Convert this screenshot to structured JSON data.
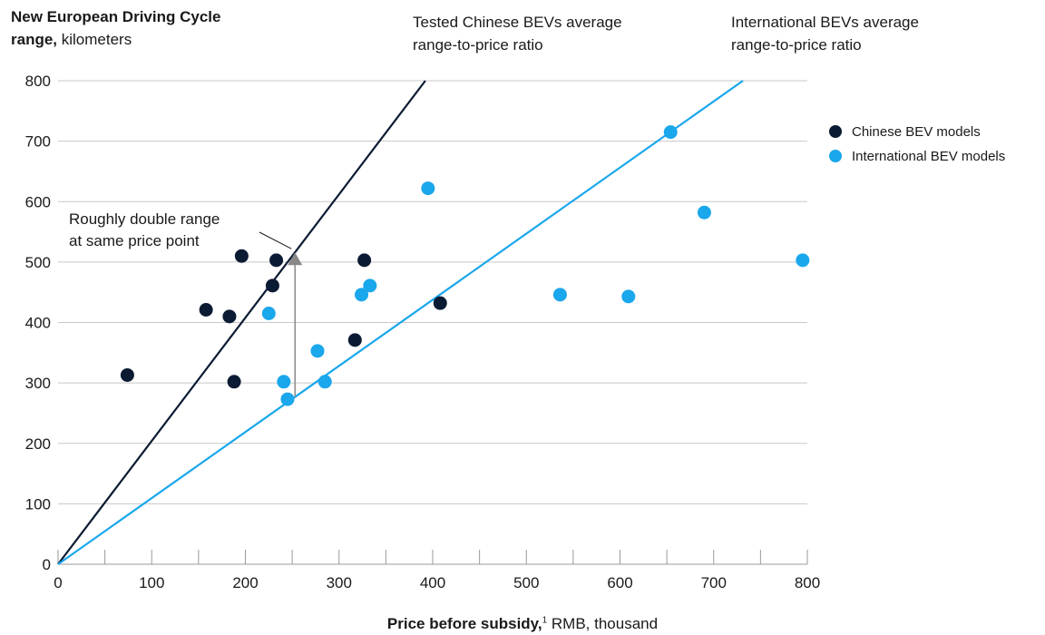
{
  "chart_data": {
    "type": "scatter",
    "ylabel_bold": "New European Driving Cycle range,",
    "ylabel_rest": " kilometers",
    "xlabel_bold": "Price before subsidy,",
    "xlabel_sup": "1",
    "xlabel_rest": " RMB, thousand",
    "xlim": [
      0,
      800
    ],
    "ylim": [
      0,
      800
    ],
    "xticks": [
      0,
      100,
      200,
      300,
      400,
      500,
      600,
      700,
      800
    ],
    "yticks": [
      0,
      100,
      200,
      300,
      400,
      500,
      600,
      700,
      800
    ],
    "x_minor_step": 50,
    "grid": "horizontal",
    "legend_position": "right",
    "series": [
      {
        "name": "Chinese BEV models",
        "color": "#0b1b33",
        "points": [
          {
            "x": 74,
            "y": 313
          },
          {
            "x": 158,
            "y": 421
          },
          {
            "x": 183,
            "y": 410
          },
          {
            "x": 196,
            "y": 510
          },
          {
            "x": 188,
            "y": 302
          },
          {
            "x": 229,
            "y": 461
          },
          {
            "x": 233,
            "y": 503
          },
          {
            "x": 317,
            "y": 371
          },
          {
            "x": 327,
            "y": 503
          },
          {
            "x": 408,
            "y": 432
          }
        ]
      },
      {
        "name": "International BEV models",
        "color": "#1aa7ec",
        "points": [
          {
            "x": 225,
            "y": 415
          },
          {
            "x": 241,
            "y": 302
          },
          {
            "x": 245,
            "y": 273
          },
          {
            "x": 277,
            "y": 353
          },
          {
            "x": 285,
            "y": 302
          },
          {
            "x": 324,
            "y": 446
          },
          {
            "x": 333,
            "y": 461
          },
          {
            "x": 395,
            "y": 622
          },
          {
            "x": 536,
            "y": 446
          },
          {
            "x": 609,
            "y": 443
          },
          {
            "x": 654,
            "y": 715
          },
          {
            "x": 690,
            "y": 582
          },
          {
            "x": 795,
            "y": 503
          }
        ]
      }
    ],
    "trend_lines": [
      {
        "label_line1": "Tested Chinese BEVs average",
        "label_line2": "range-to-price ratio",
        "color": "#0b1b33",
        "slope": 2.04
      },
      {
        "label_line1": "International BEVs average",
        "label_line2": "range-to-price ratio",
        "color": "#1aa7ec",
        "slope": 1.094
      }
    ],
    "callout": {
      "line1": "Roughly double range",
      "line2": "at same price point",
      "x": 253,
      "y_from": 277,
      "y_to": 516,
      "arrow_color": "#888888"
    }
  }
}
